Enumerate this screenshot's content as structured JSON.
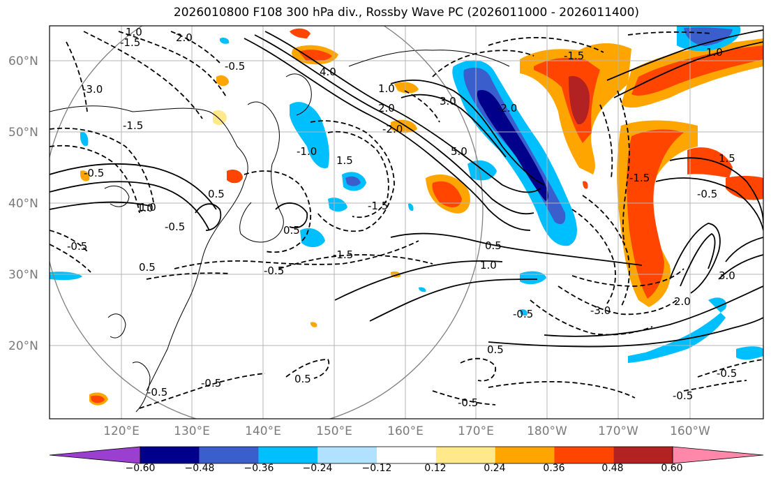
{
  "title": "2026010800 F108 300 hPa div., Rossby Wave PC (2026011000 - 2026011400)",
  "axes": {
    "lat_ticks": [
      "60°N",
      "50°N",
      "40°N",
      "30°N",
      "20°N"
    ],
    "lon_ticks": [
      "120°E",
      "130°E",
      "140°E",
      "150°E",
      "160°E",
      "170°E",
      "180°W",
      "170°W",
      "160°W"
    ]
  },
  "colorbar": {
    "tick_labels": [
      "−0.60",
      "−0.48",
      "−0.36",
      "−0.24",
      "−0.12",
      "0.12",
      "0.24",
      "0.36",
      "0.48",
      "0.60"
    ],
    "colors": [
      "#9b3fd1",
      "#00008b",
      "#3a5fcd",
      "#00bfff",
      "#b0e2ff",
      "#ffffff",
      "#ffe98a",
      "#ffa500",
      "#ff4500",
      "#b22222",
      "#ff88aa"
    ]
  },
  "contour_labels": [
    "1.0",
    "2.0",
    "-1.5",
    "-0.5",
    "-3.0",
    "4.0",
    "1.0",
    "-1.5",
    "1.0",
    "3.0",
    "5.0",
    "-2.0",
    "-1.5",
    "-2.0",
    "-1.0",
    "1.5",
    "-1.5",
    "-0.5",
    "-0.5",
    "0.5",
    "1.0",
    "-1.5",
    "-0.5",
    "0.5",
    "-0.5",
    "-3.0",
    "2.0",
    "-0.5",
    "0.5",
    "-0.5",
    "0.5",
    "-0.5",
    "1.5",
    "-0.5",
    "1.0",
    "-1.5",
    "-0.5",
    "0.5",
    "-0.5",
    "0.5",
    "2.0",
    "1.0",
    "3.0",
    "-0.5"
  ]
}
